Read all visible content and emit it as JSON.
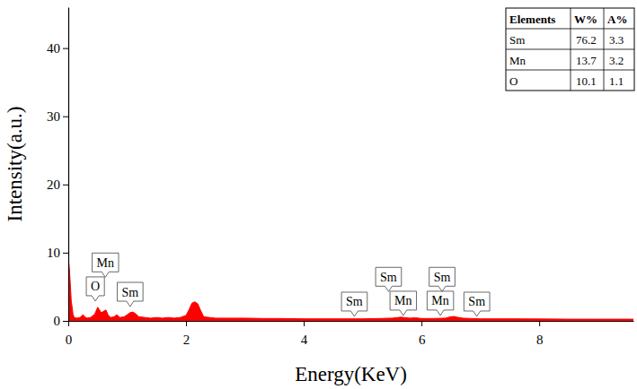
{
  "chart_data": {
    "type": "area",
    "x_label": "Energy(KeV)",
    "y_label": "Intensity(a.u.)",
    "color": "#ff0000",
    "xlim": [
      0,
      9.6
    ],
    "xticks": [
      0,
      2,
      4,
      6,
      8
    ],
    "ylim": [
      0,
      46
    ],
    "yticks": [
      0,
      10,
      20,
      30,
      40
    ],
    "grid": false,
    "x": [
      0,
      0.02,
      0.05,
      0.08,
      0.1,
      0.15,
      0.2,
      0.25,
      0.28,
      0.32,
      0.38,
      0.45,
      0.5,
      0.53,
      0.56,
      0.6,
      0.64,
      0.68,
      0.72,
      0.78,
      0.82,
      0.88,
      0.95,
      1.0,
      1.05,
      1.1,
      1.15,
      1.2,
      1.3,
      1.4,
      1.5,
      1.6,
      1.7,
      1.8,
      1.9,
      2.0,
      2.05,
      2.1,
      2.15,
      2.2,
      2.25,
      2.3,
      2.4,
      2.5,
      2.7,
      3.0,
      3.3,
      3.6,
      4.0,
      4.5,
      5.0,
      5.3,
      5.5,
      5.6,
      5.65,
      5.7,
      5.8,
      5.9,
      5.95,
      6.0,
      6.2,
      6.4,
      6.5,
      6.55,
      6.6,
      6.7,
      7.0,
      7.2,
      7.5,
      8.0,
      8.5,
      9.0,
      9.6
    ],
    "values": [
      9.3,
      7.5,
      3.0,
      1.0,
      0.5,
      0.4,
      0.5,
      0.9,
      0.6,
      0.4,
      0.5,
      1.0,
      2.0,
      1.6,
      1.2,
      1.4,
      1.6,
      0.8,
      0.5,
      0.6,
      0.9,
      0.5,
      0.6,
      0.9,
      1.2,
      1.3,
      1.0,
      0.6,
      0.5,
      0.4,
      0.5,
      0.4,
      0.5,
      0.4,
      0.5,
      0.8,
      1.6,
      2.6,
      2.8,
      2.5,
      1.5,
      0.6,
      0.5,
      0.4,
      0.4,
      0.4,
      0.35,
      0.35,
      0.3,
      0.3,
      0.3,
      0.35,
      0.4,
      0.5,
      0.55,
      0.5,
      0.4,
      0.45,
      0.4,
      0.35,
      0.35,
      0.4,
      0.6,
      0.65,
      0.55,
      0.4,
      0.3,
      0.3,
      0.3,
      0.28,
      0.25,
      0.25,
      0.25
    ],
    "annotations": [
      {
        "text": "Mn",
        "x": 0.63,
        "y": 6.4
      },
      {
        "text": "O",
        "x": 0.46,
        "y": 2.9
      },
      {
        "text": "Sm",
        "x": 1.05,
        "y": 2.1
      },
      {
        "text": "Sm",
        "x": 4.86,
        "y": 0.66
      },
      {
        "text": "Sm",
        "x": 5.44,
        "y": 4.3
      },
      {
        "text": "Mn",
        "x": 5.69,
        "y": 0.8
      },
      {
        "text": "Mn",
        "x": 6.32,
        "y": 0.8
      },
      {
        "text": "Sm",
        "x": 6.35,
        "y": 4.3
      },
      {
        "text": "Sm",
        "x": 6.94,
        "y": 0.66
      }
    ],
    "table": {
      "header": [
        "Elements",
        "W%",
        "A%"
      ],
      "rows": [
        [
          "Sm",
          76.2,
          3.3
        ],
        [
          "Mn",
          13.7,
          3.2
        ],
        [
          "O",
          10.1,
          1.1
        ]
      ]
    }
  }
}
